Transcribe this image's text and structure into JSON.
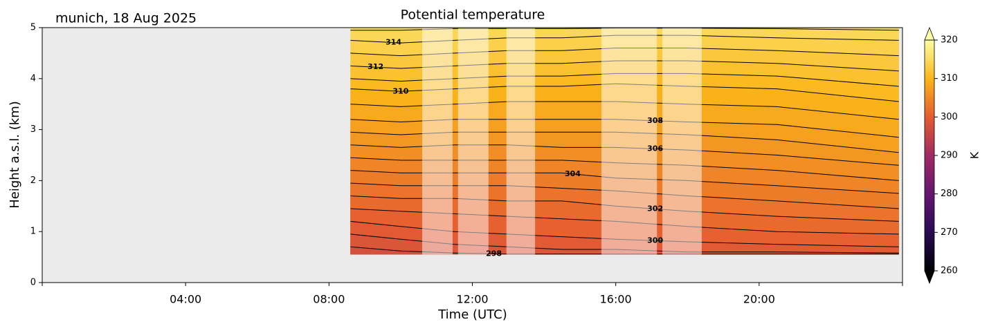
{
  "chart_data": {
    "type": "contour",
    "title": "Potential temperature",
    "subtitle": "munich, 18 Aug 2025",
    "xlabel": "Time (UTC)",
    "ylabel": "Height a.s.l. (km)",
    "xlim": [
      0,
      24
    ],
    "xticks": [
      {
        "value": 4,
        "label": "04:00"
      },
      {
        "value": 8,
        "label": "08:00"
      },
      {
        "value": 12,
        "label": "12:00"
      },
      {
        "value": 16,
        "label": "16:00"
      },
      {
        "value": 20,
        "label": "20:00"
      }
    ],
    "ylim": [
      0,
      5
    ],
    "yticks": [
      0,
      1,
      2,
      3,
      4,
      5
    ],
    "background": "#ebebeb",
    "x": [
      8.6,
      10,
      11.5,
      13,
      14.5,
      16,
      18,
      20.5,
      23.9
    ],
    "data_bottom": 0.55,
    "contours": [
      {
        "level": 298,
        "heights": [
          0.7,
          0.62,
          0.58,
          0.56,
          0.56,
          0.56,
          0.56,
          0.56,
          0.56
        ]
      },
      {
        "level": 299,
        "heights": [
          0.95,
          0.85,
          0.75,
          0.7,
          0.65,
          0.65,
          0.6,
          0.6,
          0.58
        ]
      },
      {
        "level": 300,
        "heights": [
          1.2,
          1.1,
          1.0,
          0.95,
          0.9,
          0.85,
          0.8,
          0.75,
          0.7
        ]
      },
      {
        "level": 301,
        "heights": [
          1.45,
          1.4,
          1.35,
          1.3,
          1.25,
          1.2,
          1.1,
          1.0,
          0.95
        ]
      },
      {
        "level": 302,
        "heights": [
          1.7,
          1.65,
          1.65,
          1.6,
          1.6,
          1.5,
          1.4,
          1.3,
          1.2
        ]
      },
      {
        "level": 303,
        "heights": [
          1.95,
          1.9,
          1.9,
          1.9,
          1.85,
          1.8,
          1.7,
          1.6,
          1.45
        ]
      },
      {
        "level": 304,
        "heights": [
          2.2,
          2.15,
          2.15,
          2.15,
          2.15,
          2.05,
          2.0,
          1.9,
          1.75
        ]
      },
      {
        "level": 305,
        "heights": [
          2.45,
          2.4,
          2.4,
          2.4,
          2.4,
          2.35,
          2.3,
          2.2,
          2.0
        ]
      },
      {
        "level": 306,
        "heights": [
          2.7,
          2.65,
          2.7,
          2.7,
          2.65,
          2.65,
          2.6,
          2.5,
          2.3
        ]
      },
      {
        "level": 307,
        "heights": [
          2.95,
          2.9,
          2.95,
          2.95,
          2.95,
          2.95,
          2.9,
          2.8,
          2.55
        ]
      },
      {
        "level": 308,
        "heights": [
          3.2,
          3.15,
          3.2,
          3.2,
          3.2,
          3.2,
          3.15,
          3.1,
          2.85
        ]
      },
      {
        "level": 309,
        "heights": [
          3.5,
          3.45,
          3.5,
          3.55,
          3.55,
          3.55,
          3.5,
          3.45,
          3.2
        ]
      },
      {
        "level": 310,
        "heights": [
          3.8,
          3.75,
          3.8,
          3.85,
          3.85,
          3.9,
          3.85,
          3.8,
          3.55
        ]
      },
      {
        "level": 311,
        "heights": [
          4.0,
          3.95,
          4.0,
          4.05,
          4.05,
          4.1,
          4.1,
          4.05,
          3.85
        ]
      },
      {
        "level": 312,
        "heights": [
          4.25,
          4.2,
          4.25,
          4.3,
          4.3,
          4.35,
          4.35,
          4.3,
          4.15
        ]
      },
      {
        "level": 313,
        "heights": [
          4.5,
          4.45,
          4.5,
          4.55,
          4.55,
          4.6,
          4.6,
          4.55,
          4.45
        ]
      },
      {
        "level": 314,
        "heights": [
          4.75,
          4.7,
          4.75,
          4.8,
          4.8,
          4.85,
          4.85,
          4.8,
          4.75
        ]
      },
      {
        "level": 315,
        "heights": [
          4.95,
          4.95,
          4.98,
          4.98,
          4.98,
          4.99,
          4.99,
          4.98,
          4.95
        ]
      }
    ],
    "masked_intervals": [
      [
        10.6,
        11.45
      ],
      [
        11.6,
        12.45
      ],
      [
        12.95,
        13.75
      ],
      [
        15.6,
        17.15
      ],
      [
        17.3,
        18.4
      ]
    ],
    "colorbar": {
      "label": "K",
      "lim": [
        260,
        320
      ],
      "ticks": [
        260,
        270,
        280,
        290,
        300,
        310,
        320
      ],
      "colors": [
        "#000004",
        "#280b53",
        "#65156e",
        "#9f2a63",
        "#e55c30",
        "#fbb61a",
        "#fcffa4"
      ]
    }
  }
}
